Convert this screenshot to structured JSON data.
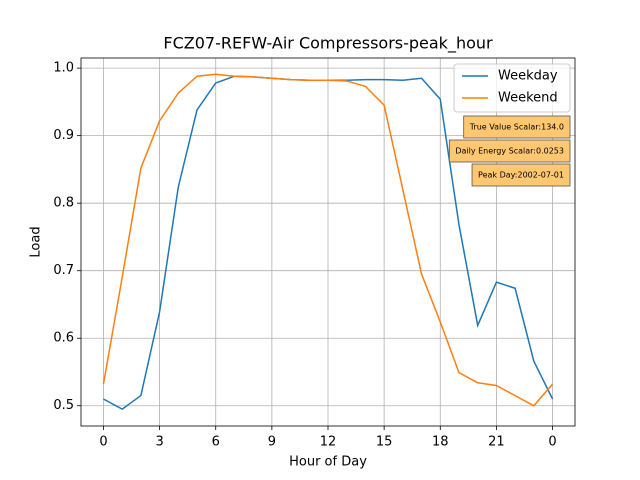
{
  "chart_data": {
    "type": "line",
    "title": "FCZ07-REFW-Air Compressors-peak_hour",
    "x_label": "Hour of Day",
    "y_label": "Load",
    "x": [
      0,
      1,
      2,
      3,
      4,
      5,
      6,
      7,
      8,
      9,
      10,
      11,
      12,
      13,
      14,
      15,
      16,
      17,
      18,
      19,
      20,
      21,
      22,
      23,
      24
    ],
    "series": [
      {
        "name": "Weekday",
        "color": "#1f77b4",
        "values": [
          0.51,
          0.495,
          0.515,
          0.639,
          0.824,
          0.938,
          0.978,
          0.988,
          0.987,
          0.985,
          0.983,
          0.982,
          0.982,
          0.982,
          0.983,
          0.983,
          0.982,
          0.985,
          0.954,
          0.768,
          0.619,
          0.683,
          0.674,
          0.566,
          0.51
        ]
      },
      {
        "name": "Weekend",
        "color": "#ff7f0e",
        "values": [
          0.532,
          0.69,
          0.852,
          0.922,
          0.963,
          0.988,
          0.991,
          0.988,
          0.987,
          0.985,
          0.983,
          0.982,
          0.982,
          0.981,
          0.973,
          0.945,
          0.82,
          0.695,
          0.624,
          0.549,
          0.534,
          0.53,
          0.515,
          0.5,
          0.532
        ]
      }
    ],
    "xlim": [
      -1.2,
      25.2
    ],
    "xticks": [
      0,
      3,
      6,
      9,
      12,
      15,
      18,
      21,
      {
        "value": 24,
        "label": "0"
      }
    ],
    "ylim": [
      0.47,
      1.015
    ],
    "yticks": [
      0.5,
      0.6,
      0.7,
      0.8,
      0.9,
      {
        "value": 1.0,
        "label": "1.0"
      }
    ],
    "grid": true,
    "legend": "upper right",
    "annotations": [
      "True Value Scalar:134.0",
      "Daily Energy Scalar:0.0253",
      "Peak Day:2002-07-01"
    ]
  }
}
